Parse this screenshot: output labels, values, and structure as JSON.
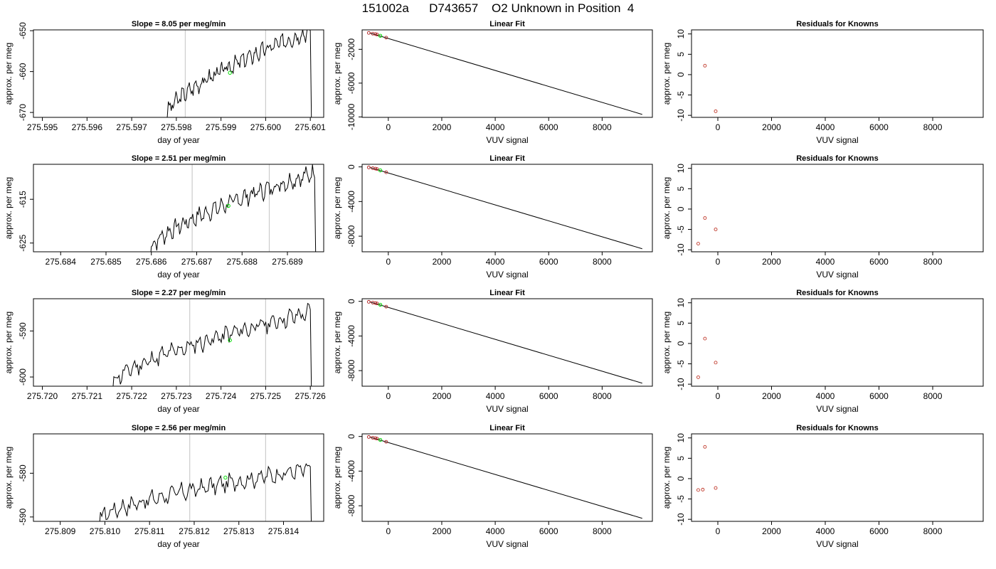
{
  "title": "151002a      D743657    O2 Unknown in Position  4",
  "colors": {
    "trace": "#000000",
    "vline": "#cccccc",
    "marker": "#00dd00",
    "resid": "#c0392b",
    "fitpt": "#b22222"
  },
  "chart_data": [
    {
      "type": "line",
      "title": "Slope =  8.05  per meg/min",
      "xlabel": "day of year",
      "ylabel": "approx. per meg",
      "xlim": [
        275.5948,
        275.6013
      ],
      "ylim": [
        -671.2,
        -649.8
      ],
      "xticks": [
        "275.595",
        "275.596",
        "275.597",
        "275.598",
        "275.599",
        "275.600",
        "275.601"
      ],
      "xtick_vals": [
        275.595,
        275.596,
        275.597,
        275.598,
        275.599,
        275.6,
        275.601
      ],
      "yticks": [
        "-670",
        "-660",
        "-650"
      ],
      "ytick_vals": [
        -670,
        -660,
        -650
      ],
      "vlines": [
        275.5982,
        275.6
      ],
      "marker": {
        "x": 275.5992,
        "y": -660.3
      },
      "trace_start": 275.5978,
      "trace_end": 275.601,
      "trace_y0": -670,
      "trace_y1": -650,
      "trace_seed": 3
    },
    {
      "type": "scatter",
      "title": "Linear Fit",
      "xlabel": "VUV signal",
      "ylabel": "approx. per meg",
      "xlim": [
        -980,
        9880
      ],
      "ylim": [
        -10050,
        300
      ],
      "xticks": [
        "0",
        "2000",
        "4000",
        "6000",
        "8000"
      ],
      "xtick_vals": [
        0,
        2000,
        4000,
        6000,
        8000
      ],
      "yticks": [
        "-10000",
        "-6000",
        "-2000"
      ],
      "ytick_vals": [
        -10000,
        -6000,
        -2000
      ],
      "points": [
        [
          -730,
          -60
        ],
        [
          -580,
          -150
        ],
        [
          -480,
          -200
        ],
        [
          -420,
          -250
        ],
        [
          -80,
          -620
        ]
      ],
      "marker": {
        "x": -300,
        "y": -400
      },
      "line": [
        [
          -700,
          -60
        ],
        [
          9500,
          -9700
        ]
      ]
    },
    {
      "type": "scatter",
      "title": "Residuals for Knowns",
      "xlabel": "VUV signal",
      "ylabel": "approx. per meg",
      "xlim": [
        -980,
        9880
      ],
      "ylim": [
        -10.5,
        11
      ],
      "xticks": [
        "0",
        "2000",
        "4000",
        "6000",
        "8000"
      ],
      "xtick_vals": [
        0,
        2000,
        4000,
        6000,
        8000
      ],
      "yticks": [
        "-10",
        "-5",
        "0",
        "5",
        "10"
      ],
      "ytick_vals": [
        -10,
        -5,
        0,
        5,
        10
      ],
      "points": [
        [
          -480,
          2.2
        ],
        [
          -80,
          -9
        ]
      ]
    },
    {
      "type": "line",
      "title": "Slope =  2.51  per meg/min",
      "xlabel": "day of year",
      "ylabel": "approx. per meg",
      "xlim": [
        275.6834,
        275.6898
      ],
      "ylim": [
        -627,
        -607
      ],
      "xticks": [
        "275.684",
        "275.685",
        "275.686",
        "275.687",
        "275.688",
        "275.689"
      ],
      "xtick_vals": [
        275.684,
        275.685,
        275.686,
        275.687,
        275.688,
        275.689
      ],
      "yticks": [
        "-625",
        "-615"
      ],
      "ytick_vals": [
        -625,
        -615
      ],
      "vlines": [
        275.6869,
        275.6886
      ],
      "marker": {
        "x": 275.6877,
        "y": -616.5
      },
      "trace_start": 275.686,
      "trace_end": 275.6896,
      "trace_y0": -626,
      "trace_y1": -609,
      "trace_seed": 7
    },
    {
      "type": "scatter",
      "title": "Linear Fit",
      "xlabel": "VUV signal",
      "ylabel": "approx. per meg",
      "xlim": [
        -980,
        9880
      ],
      "ylim": [
        -9800,
        300
      ],
      "xticks": [
        "0",
        "2000",
        "4000",
        "6000",
        "8000"
      ],
      "xtick_vals": [
        0,
        2000,
        4000,
        6000,
        8000
      ],
      "yticks": [
        "-8000",
        "-4000",
        "0"
      ],
      "ytick_vals": [
        -8000,
        -4000,
        0
      ],
      "points": [
        [
          -730,
          -60
        ],
        [
          -580,
          -150
        ],
        [
          -480,
          -200
        ],
        [
          -420,
          -250
        ],
        [
          -80,
          -620
        ]
      ],
      "marker": {
        "x": -300,
        "y": -400
      },
      "line": [
        [
          -700,
          -60
        ],
        [
          9500,
          -9450
        ]
      ]
    },
    {
      "type": "scatter",
      "title": "Residuals for Knowns",
      "xlabel": "VUV signal",
      "ylabel": "approx. per meg",
      "xlim": [
        -980,
        9880
      ],
      "ylim": [
        -10.5,
        11
      ],
      "xticks": [
        "0",
        "2000",
        "4000",
        "6000",
        "8000"
      ],
      "xtick_vals": [
        0,
        2000,
        4000,
        6000,
        8000
      ],
      "yticks": [
        "-10",
        "-5",
        "0",
        "5",
        "10"
      ],
      "ytick_vals": [
        -10,
        -5,
        0,
        5,
        10
      ],
      "points": [
        [
          -730,
          -8.5
        ],
        [
          -480,
          -2.2
        ],
        [
          -80,
          -5
        ]
      ]
    },
    {
      "type": "line",
      "title": "Slope =  2.27  per meg/min",
      "xlabel": "day of year",
      "ylabel": "approx. per meg",
      "xlim": [
        275.7198,
        275.7263
      ],
      "ylim": [
        -602,
        -583
      ],
      "xticks": [
        "275.720",
        "275.721",
        "275.722",
        "275.723",
        "275.724",
        "275.725",
        "275.726"
      ],
      "xtick_vals": [
        275.72,
        275.721,
        275.722,
        275.723,
        275.724,
        275.725,
        275.726
      ],
      "yticks": [
        "-600",
        "-590"
      ],
      "ytick_vals": [
        -600,
        -590
      ],
      "vlines": [
        275.7233,
        275.725
      ],
      "marker": {
        "x": 275.7242,
        "y": -592
      },
      "trace_start": 275.7216,
      "trace_end": 275.726,
      "trace_y0": -601,
      "trace_y1": -586,
      "trace_seed": 11
    },
    {
      "type": "scatter",
      "title": "Linear Fit",
      "xlabel": "VUV signal",
      "ylabel": "approx. per meg",
      "xlim": [
        -980,
        9880
      ],
      "ylim": [
        -9800,
        300
      ],
      "xticks": [
        "0",
        "2000",
        "4000",
        "6000",
        "8000"
      ],
      "xtick_vals": [
        0,
        2000,
        4000,
        6000,
        8000
      ],
      "yticks": [
        "-8000",
        "-4000",
        "0"
      ],
      "ytick_vals": [
        -8000,
        -4000,
        0
      ],
      "points": [
        [
          -730,
          -60
        ],
        [
          -580,
          -150
        ],
        [
          -480,
          -200
        ],
        [
          -420,
          -250
        ],
        [
          -80,
          -620
        ]
      ],
      "marker": {
        "x": -300,
        "y": -400
      },
      "line": [
        [
          -700,
          -60
        ],
        [
          9500,
          -9450
        ]
      ]
    },
    {
      "type": "scatter",
      "title": "Residuals for Knowns",
      "xlabel": "VUV signal",
      "ylabel": "approx. per meg",
      "xlim": [
        -980,
        9880
      ],
      "ylim": [
        -10.5,
        11
      ],
      "xticks": [
        "0",
        "2000",
        "4000",
        "6000",
        "8000"
      ],
      "xtick_vals": [
        0,
        2000,
        4000,
        6000,
        8000
      ],
      "yticks": [
        "-10",
        "-5",
        "0",
        "5",
        "10"
      ],
      "ytick_vals": [
        -10,
        -5,
        0,
        5,
        10
      ],
      "points": [
        [
          -730,
          -8.3
        ],
        [
          -480,
          1.2
        ],
        [
          -80,
          -4.7
        ]
      ]
    },
    {
      "type": "line",
      "title": "Slope =  2.56  per meg/min",
      "xlabel": "day of year",
      "ylabel": "approx. per meg",
      "xlim": [
        275.8084,
        275.8149
      ],
      "ylim": [
        -591,
        -571
      ],
      "xticks": [
        "275.809",
        "275.810",
        "275.811",
        "275.812",
        "275.813",
        "275.814"
      ],
      "xtick_vals": [
        275.809,
        275.81,
        275.811,
        275.812,
        275.813,
        275.814
      ],
      "yticks": [
        "-590",
        "-580"
      ],
      "ytick_vals": [
        -590,
        -580
      ],
      "vlines": [
        275.8119,
        275.8136
      ],
      "marker": {
        "x": 275.8127,
        "y": -581
      },
      "trace_start": 275.8099,
      "trace_end": 275.8146,
      "trace_y0": -590,
      "trace_y1": -579,
      "trace_seed": 17
    },
    {
      "type": "scatter",
      "title": "Linear Fit",
      "xlabel": "VUV signal",
      "ylabel": "approx. per meg",
      "xlim": [
        -980,
        9880
      ],
      "ylim": [
        -9800,
        300
      ],
      "xticks": [
        "0",
        "2000",
        "4000",
        "6000",
        "8000"
      ],
      "xtick_vals": [
        0,
        2000,
        4000,
        6000,
        8000
      ],
      "yticks": [
        "-8000",
        "-4000",
        "0"
      ],
      "ytick_vals": [
        -8000,
        -4000,
        0
      ],
      "points": [
        [
          -730,
          -60
        ],
        [
          -580,
          -150
        ],
        [
          -480,
          -200
        ],
        [
          -420,
          -250
        ],
        [
          -80,
          -620
        ]
      ],
      "marker": {
        "x": -300,
        "y": -400
      },
      "line": [
        [
          -700,
          -60
        ],
        [
          9500,
          -9450
        ]
      ]
    },
    {
      "type": "scatter",
      "title": "Residuals for Knowns",
      "xlabel": "VUV signal",
      "ylabel": "approx. per meg",
      "xlim": [
        -980,
        9880
      ],
      "ylim": [
        -10.5,
        11
      ],
      "xticks": [
        "0",
        "2000",
        "4000",
        "6000",
        "8000"
      ],
      "xtick_vals": [
        0,
        2000,
        4000,
        6000,
        8000
      ],
      "yticks": [
        "-10",
        "-5",
        "0",
        "5",
        "10"
      ],
      "ytick_vals": [
        -10,
        -5,
        0,
        5,
        10
      ],
      "points": [
        [
          -730,
          -2.8
        ],
        [
          -560,
          -2.7
        ],
        [
          -480,
          7.8
        ],
        [
          -80,
          -2.3
        ]
      ]
    }
  ]
}
